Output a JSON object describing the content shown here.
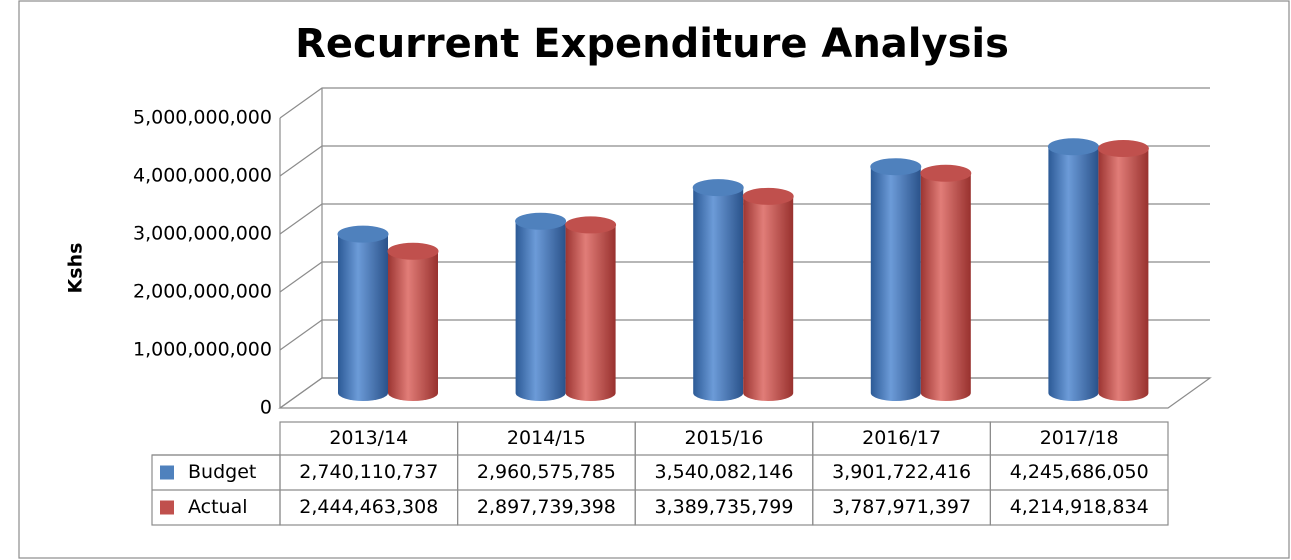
{
  "chart_data": {
    "type": "bar3d",
    "title": "Recurrent  Expenditure Analysis",
    "y_label": "Kshs",
    "categories": [
      "2013/14",
      "2014/15",
      "2015/16",
      "2016/17",
      "2017/18"
    ],
    "series": [
      {
        "name": "Budget",
        "color": "#4f81bd",
        "values": [
          2740110737,
          2960575785,
          3540082146,
          3901722416,
          4245686050
        ],
        "value_labels": [
          "2,740,110,737",
          "2,960,575,785",
          "3,540,082,146",
          "3,901,722,416",
          "4,245,686,050"
        ]
      },
      {
        "name": "Actual",
        "color": "#c0504d",
        "values": [
          2444463308,
          2897739398,
          3389735799,
          3787971397,
          4214918834
        ],
        "value_labels": [
          "2,444,463,308",
          "2,897,739,398",
          "3,389,735,799",
          "3,787,971,397",
          "4,214,918,834"
        ]
      }
    ],
    "ylim": [
      0,
      5000000000
    ],
    "yticks": [
      0,
      {
        "value": 1000000000,
        "label": "1,000,000,000"
      },
      {
        "value": 2000000000,
        "label": "2,000,000,000"
      },
      {
        "value": 3000000000,
        "label": "3,000,000,000"
      },
      {
        "value": 4000000000,
        "label": "4,000,000,000"
      },
      {
        "value": 5000000000,
        "label": "5,000,000,000"
      }
    ],
    "grid": true,
    "legend": "table"
  }
}
